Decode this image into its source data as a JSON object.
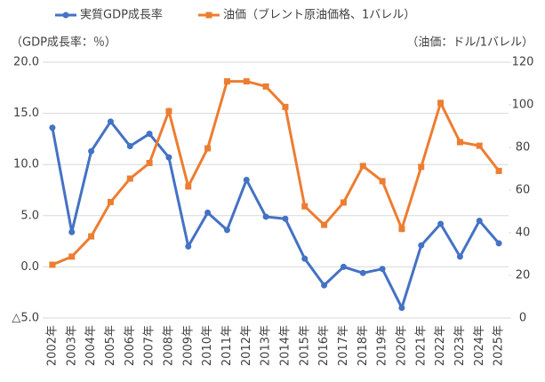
{
  "chart_data": {
    "type": "line",
    "categories": [
      "2002年",
      "2003年",
      "2004年",
      "2005年",
      "2006年",
      "2007年",
      "2008年",
      "2009年",
      "2010年",
      "2011年",
      "2012年",
      "2013年",
      "2014年",
      "2015年",
      "2016年",
      "2017年",
      "2018年",
      "2019年",
      "2020年",
      "2021年",
      "2022年",
      "2023年",
      "2024年",
      "2025年"
    ],
    "y_label": "（GDP成長率：％）",
    "y2_label": "（油価：ドル/1バレル）",
    "ylim": [
      -5,
      20
    ],
    "yticks": [
      {
        "value": -5,
        "label": "△5.0"
      },
      {
        "value": 0,
        "label": "0.0"
      },
      {
        "value": 5,
        "label": "5.0"
      },
      {
        "value": 10,
        "label": "10.0"
      },
      {
        "value": 15,
        "label": "15.0"
      },
      {
        "value": 20,
        "label": "20.0"
      }
    ],
    "y2lim": [
      0,
      120
    ],
    "y2ticks": [
      0,
      20,
      40,
      60,
      80,
      100,
      120
    ],
    "grid": true,
    "legend": "top",
    "series": [
      {
        "name": "実質GDP成長率",
        "color": "#4472c4",
        "marker": "circle",
        "values": [
          13.6,
          3.4,
          11.3,
          14.2,
          11.8,
          13.0,
          10.7,
          2.0,
          5.3,
          3.6,
          8.5,
          4.9,
          4.7,
          0.8,
          -1.8,
          0.0,
          -0.6,
          -0.2,
          -4.0,
          2.1,
          4.2,
          1.0,
          4.5,
          2.3
        ]
      },
      {
        "name": "油価（ブレント原油価格、1バレル）",
        "color": "#ed7d31",
        "marker": "square",
        "axis": "y2",
        "values": [
          25.0,
          28.8,
          38.3,
          54.4,
          65.4,
          72.7,
          97.0,
          61.7,
          79.6,
          111.0,
          111.0,
          108.6,
          99.0,
          52.4,
          43.7,
          54.2,
          71.3,
          64.2,
          41.8,
          70.9,
          100.9,
          82.5,
          80.8,
          69.0
        ]
      }
    ]
  }
}
